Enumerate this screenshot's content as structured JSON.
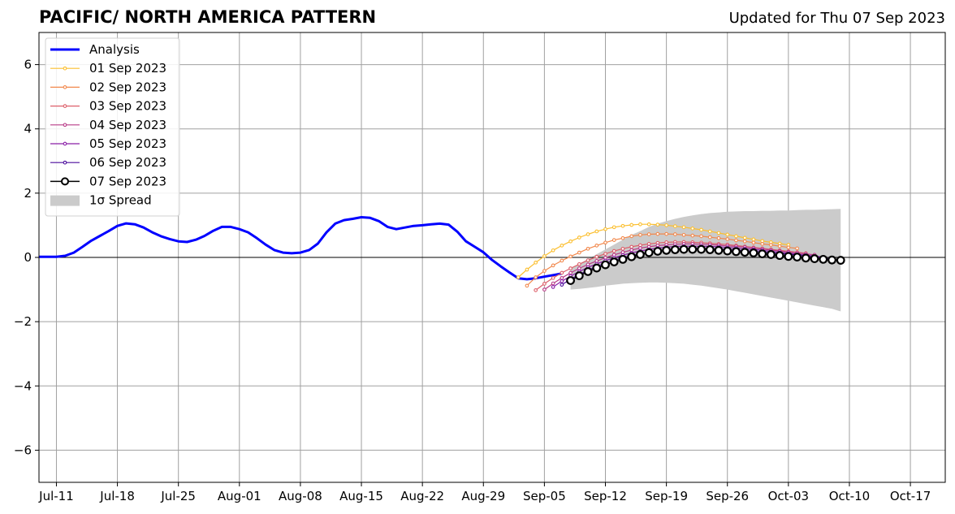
{
  "header": {
    "title": "PACIFIC/ NORTH AMERICA PATTERN",
    "updated": "Updated for Thu 07 Sep 2023"
  },
  "chart_data": {
    "type": "line",
    "title": "PACIFIC/ NORTH AMERICA PATTERN",
    "subtitle": "Updated for Thu 07 Sep 2023",
    "xlabel": "",
    "ylabel": "",
    "xlim": [
      "2023-07-09",
      "2023-10-21"
    ],
    "ylim": [
      -7,
      7
    ],
    "x_tick_labels": [
      "Jul-11",
      "Jul-18",
      "Jul-25",
      "Aug-01",
      "Aug-08",
      "Aug-15",
      "Aug-22",
      "Aug-29",
      "Sep-05",
      "Sep-12",
      "Sep-19",
      "Sep-26",
      "Oct-03",
      "Oct-10",
      "Oct-17"
    ],
    "x_tick_dates": [
      "2023-07-11",
      "2023-07-18",
      "2023-07-25",
      "2023-08-01",
      "2023-08-08",
      "2023-08-15",
      "2023-08-22",
      "2023-08-29",
      "2023-09-05",
      "2023-09-12",
      "2023-09-19",
      "2023-09-26",
      "2023-10-03",
      "2023-10-10",
      "2023-10-17"
    ],
    "y_ticks": [
      -6,
      -4,
      -2,
      0,
      2,
      4,
      6
    ],
    "y_tick_labels": [
      "−6",
      "−4",
      "−2",
      "0",
      "2",
      "4",
      "6"
    ],
    "grid": true,
    "legend_position": "top-left",
    "series": [
      {
        "name": "Analysis",
        "color": "#0000ff",
        "style": "line",
        "start_date": "2023-07-09",
        "values": [
          0.02,
          0.02,
          0.02,
          0.05,
          0.15,
          0.33,
          0.52,
          0.67,
          0.82,
          0.98,
          1.06,
          1.03,
          0.93,
          0.78,
          0.66,
          0.57,
          0.5,
          0.48,
          0.55,
          0.67,
          0.83,
          0.95,
          0.95,
          0.88,
          0.78,
          0.6,
          0.4,
          0.23,
          0.15,
          0.13,
          0.15,
          0.23,
          0.43,
          0.78,
          1.05,
          1.16,
          1.2,
          1.25,
          1.23,
          1.13,
          0.95,
          0.88,
          0.93,
          0.98,
          1.0,
          1.03,
          1.05,
          1.02,
          0.8,
          0.5,
          0.33,
          0.16,
          -0.08,
          -0.28,
          -0.47,
          -0.65,
          -0.68,
          -0.65,
          -0.6,
          -0.55,
          -0.5
        ]
      },
      {
        "name": "01 Sep 2023",
        "color": "#fbbf2f",
        "style": "dots",
        "start_date": "2023-09-02",
        "values": [
          -0.62,
          -0.38,
          -0.16,
          0.04,
          0.22,
          0.37,
          0.5,
          0.62,
          0.72,
          0.81,
          0.88,
          0.94,
          0.98,
          1.01,
          1.03,
          1.03,
          1.02,
          1.0,
          0.97,
          0.94,
          0.9,
          0.86,
          0.81,
          0.76,
          0.71,
          0.66,
          0.61,
          0.56,
          0.51,
          0.47,
          0.43,
          0.39
        ]
      },
      {
        "name": "02 Sep 2023",
        "color": "#f2884c",
        "style": "dots",
        "start_date": "2023-09-03",
        "values": [
          -0.88,
          -0.62,
          -0.42,
          -0.25,
          -0.1,
          0.03,
          0.15,
          0.27,
          0.37,
          0.46,
          0.54,
          0.6,
          0.66,
          0.7,
          0.72,
          0.73,
          0.73,
          0.72,
          0.7,
          0.68,
          0.66,
          0.63,
          0.6,
          0.57,
          0.53,
          0.5,
          0.46,
          0.42,
          0.39,
          0.35,
          0.31,
          0.28
        ]
      },
      {
        "name": "03 Sep 2023",
        "color": "#dd5f6a",
        "style": "dots",
        "start_date": "2023-09-04",
        "values": [
          -1.02,
          -0.82,
          -0.64,
          -0.48,
          -0.34,
          -0.21,
          -0.09,
          0.02,
          0.11,
          0.2,
          0.27,
          0.33,
          0.38,
          0.42,
          0.45,
          0.47,
          0.48,
          0.48,
          0.47,
          0.46,
          0.44,
          0.42,
          0.4,
          0.37,
          0.34,
          0.31,
          0.28,
          0.25,
          0.22,
          0.19,
          0.16,
          0.13
        ]
      },
      {
        "name": "04 Sep 2023",
        "color": "#b83b87",
        "style": "dots",
        "start_date": "2023-09-05",
        "values": [
          -1.0,
          -0.81,
          -0.64,
          -0.48,
          -0.34,
          -0.22,
          -0.11,
          -0.01,
          0.08,
          0.16,
          0.23,
          0.29,
          0.33,
          0.37,
          0.39,
          0.41,
          0.42,
          0.42,
          0.41,
          0.4,
          0.38,
          0.36,
          0.34,
          0.32,
          0.29,
          0.26,
          0.23,
          0.2,
          0.17,
          0.14,
          0.11,
          0.08
        ]
      },
      {
        "name": "05 Sep 2023",
        "color": "#8a1ea8",
        "style": "dots",
        "start_date": "2023-09-06",
        "values": [
          -0.92,
          -0.74,
          -0.58,
          -0.44,
          -0.31,
          -0.2,
          -0.1,
          -0.01,
          0.07,
          0.14,
          0.2,
          0.25,
          0.29,
          0.32,
          0.34,
          0.35,
          0.35,
          0.35,
          0.34,
          0.33,
          0.31,
          0.29,
          0.27,
          0.25,
          0.22,
          0.19,
          0.16,
          0.13,
          0.1,
          0.07,
          0.04,
          0.01
        ]
      },
      {
        "name": "06 Sep 2023",
        "color": "#4b0b9c",
        "style": "dots",
        "start_date": "2023-09-07",
        "values": [
          -0.85,
          -0.68,
          -0.53,
          -0.4,
          -0.28,
          -0.18,
          -0.09,
          -0.01,
          0.06,
          0.12,
          0.17,
          0.21,
          0.24,
          0.26,
          0.27,
          0.28,
          0.28,
          0.27,
          0.26,
          0.25,
          0.23,
          0.21,
          0.19,
          0.17,
          0.15,
          0.12,
          0.1,
          0.07,
          0.04,
          0.01,
          -0.02,
          -0.05
        ]
      },
      {
        "name": "07 Sep 2023",
        "color": "#000000",
        "style": "circles",
        "start_date": "2023-09-08",
        "values": [
          -0.72,
          -0.57,
          -0.44,
          -0.33,
          -0.23,
          -0.14,
          -0.06,
          0.02,
          0.09,
          0.15,
          0.19,
          0.22,
          0.24,
          0.25,
          0.25,
          0.25,
          0.24,
          0.22,
          0.2,
          0.18,
          0.16,
          0.14,
          0.11,
          0.09,
          0.06,
          0.03,
          0.01,
          -0.02,
          -0.04,
          -0.06,
          -0.08,
          -0.09
        ]
      }
    ],
    "spread": {
      "name": "1σ Spread",
      "color": "#cbcbcb",
      "start_date": "2023-09-08",
      "upper": [
        -0.35,
        -0.2,
        -0.05,
        0.1,
        0.25,
        0.4,
        0.55,
        0.7,
        0.82,
        0.95,
        1.05,
        1.13,
        1.2,
        1.26,
        1.31,
        1.35,
        1.38,
        1.4,
        1.42,
        1.43,
        1.44,
        1.44,
        1.45,
        1.45,
        1.46,
        1.46,
        1.47,
        1.48,
        1.48,
        1.49,
        1.5,
        1.51
      ],
      "lower": [
        -1.0,
        -0.98,
        -0.95,
        -0.92,
        -0.88,
        -0.85,
        -0.82,
        -0.8,
        -0.79,
        -0.78,
        -0.78,
        -0.79,
        -0.8,
        -0.82,
        -0.85,
        -0.88,
        -0.92,
        -0.96,
        -1.0,
        -1.05,
        -1.1,
        -1.15,
        -1.2,
        -1.25,
        -1.3,
        -1.35,
        -1.4,
        -1.45,
        -1.5,
        -1.55,
        -1.6,
        -1.68
      ]
    }
  }
}
